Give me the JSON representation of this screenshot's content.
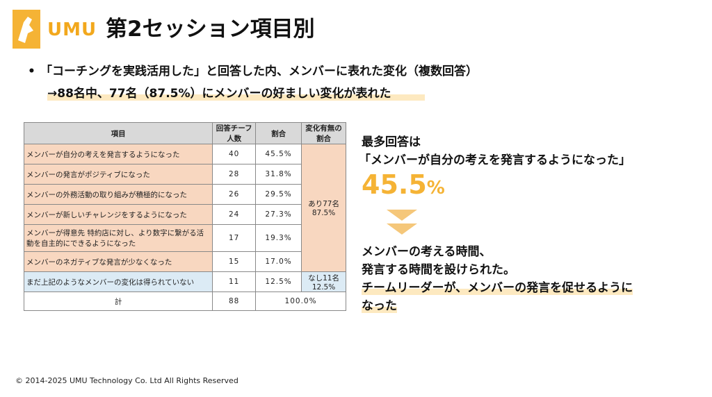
{
  "brand": {
    "logo_text": "UMU",
    "accent": "#f5b335",
    "highlight": "#fde9c0"
  },
  "title": "第2セッション項目別",
  "bullet": {
    "dot": "•",
    "text": "「コーチングを実践活用した」と回答した内、メンバーに表れた変化（複数回答）",
    "sub": "→88名中、77名（87.5%）にメンバーの好ましい変化が表れた"
  },
  "table": {
    "headers": [
      "項目",
      "回答チーフ人数",
      "割合",
      "変化有無の割合"
    ],
    "rows": [
      {
        "item": "メンバーが自分の考えを発言するようになった",
        "count": "40",
        "ratio": "45.5%"
      },
      {
        "item": "メンバーの発言がポジティブになった",
        "count": "28",
        "ratio": "31.8%"
      },
      {
        "item": "メンバーの外務活動の取り組みが積極的になった",
        "count": "26",
        "ratio": "29.5%"
      },
      {
        "item": "メンバーが新しいチャレンジをするようになった",
        "count": "24",
        "ratio": "27.3%"
      },
      {
        "item": "メンバーが得意先 特約店に対し、より数字に繋がる活動を自主的にできるようになった",
        "count": "17",
        "ratio": "19.3%"
      },
      {
        "item": "メンバーのネガティブな発言が少なくなった",
        "count": "15",
        "ratio": "17.0%"
      }
    ],
    "group_yes": "あり77名 87.5%",
    "none_row": {
      "item": "まだ上記のようなメンバーの変化は得られていない",
      "count": "11",
      "ratio": "12.5%",
      "group": "なし11名 12.5%"
    },
    "total": {
      "label": "計",
      "count": "88",
      "ratio": "100.0%"
    }
  },
  "right": {
    "head1": "最多回答は",
    "head2": "「メンバーが自分の考えを発言するようになった」",
    "big_value": "45.5",
    "big_unit": "%",
    "body1": "メンバーの考える時間、",
    "body2": "発言する時間を設けられた。",
    "body3": "チームリーダーが、メンバーの発言を促せるように",
    "body4": "なった"
  },
  "footer": "© 2014-2025 UMU Technology Co. Ltd All Rights Reserved"
}
